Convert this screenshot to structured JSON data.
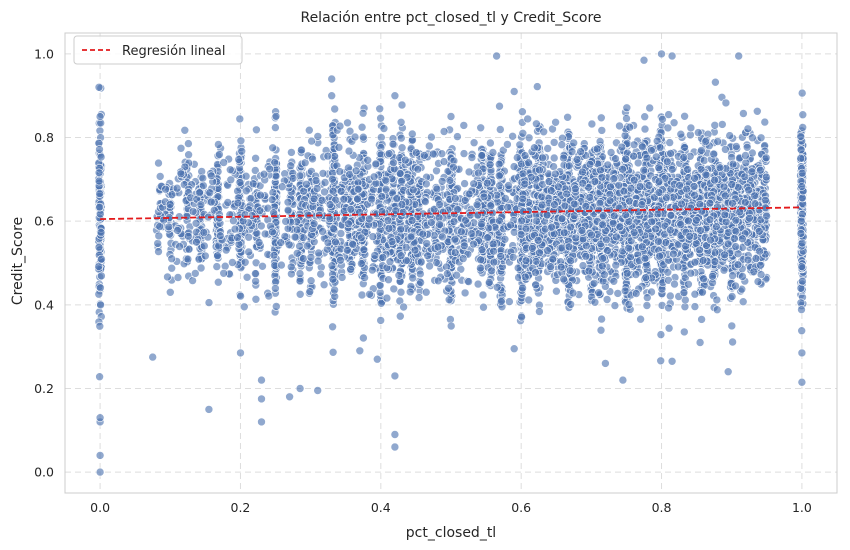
{
  "chart_data": {
    "type": "scatter",
    "title": "Relación entre pct_closed_tl y Credit_Score",
    "xlabel": "pct_closed_tl",
    "ylabel": "Credit_Score",
    "xlim": [
      -0.05,
      1.05
    ],
    "ylim": [
      -0.05,
      1.05
    ],
    "x_ticks": [
      "0.0",
      "0.2",
      "0.4",
      "0.6",
      "0.8",
      "1.0"
    ],
    "y_ticks": [
      "0.0",
      "0.2",
      "0.4",
      "0.6",
      "0.8",
      "1.0"
    ],
    "grid": true,
    "grid_style": "dashed",
    "legend_position": "top-left",
    "colors": {
      "points": "#4c72b0",
      "regression": "#e31a1c",
      "grid": "#dddddd",
      "frame": "#cccccc"
    },
    "series": [
      {
        "kind": "points",
        "color": "#4c72b0",
        "highlighted_points": [
          {
            "x": 0.0,
            "y": 0.0
          },
          {
            "x": 0.0,
            "y": 0.04
          },
          {
            "x": 0.0,
            "y": 0.12
          },
          {
            "x": 0.0,
            "y": 0.13
          },
          {
            "x": 0.0,
            "y": 0.85
          },
          {
            "x": 0.075,
            "y": 0.275
          },
          {
            "x": 0.1,
            "y": 0.43
          },
          {
            "x": 0.155,
            "y": 0.15
          },
          {
            "x": 0.2,
            "y": 0.285
          },
          {
            "x": 0.23,
            "y": 0.12
          },
          {
            "x": 0.23,
            "y": 0.175
          },
          {
            "x": 0.23,
            "y": 0.22
          },
          {
            "x": 0.27,
            "y": 0.18
          },
          {
            "x": 0.285,
            "y": 0.2
          },
          {
            "x": 0.31,
            "y": 0.195
          },
          {
            "x": 0.33,
            "y": 0.94
          },
          {
            "x": 0.33,
            "y": 0.9
          },
          {
            "x": 0.37,
            "y": 0.29
          },
          {
            "x": 0.395,
            "y": 0.27
          },
          {
            "x": 0.42,
            "y": 0.06
          },
          {
            "x": 0.42,
            "y": 0.09
          },
          {
            "x": 0.42,
            "y": 0.23
          },
          {
            "x": 0.42,
            "y": 0.9
          },
          {
            "x": 0.565,
            "y": 0.995
          },
          {
            "x": 0.59,
            "y": 0.295
          },
          {
            "x": 0.59,
            "y": 0.91
          },
          {
            "x": 0.72,
            "y": 0.26
          },
          {
            "x": 0.745,
            "y": 0.22
          },
          {
            "x": 0.775,
            "y": 0.985
          },
          {
            "x": 0.8,
            "y": 1.0
          },
          {
            "x": 0.815,
            "y": 0.995
          },
          {
            "x": 0.815,
            "y": 0.265
          },
          {
            "x": 0.855,
            "y": 0.31
          },
          {
            "x": 0.895,
            "y": 0.24
          },
          {
            "x": 0.91,
            "y": 0.995
          },
          {
            "x": 1.0,
            "y": 0.215
          },
          {
            "x": 1.0,
            "y": 0.285
          }
        ]
      }
    ],
    "regression": {
      "name": "Regresión lineal",
      "x": [
        0.0,
        1.0
      ],
      "y": [
        0.605,
        0.633
      ],
      "style": "dashed"
    }
  }
}
